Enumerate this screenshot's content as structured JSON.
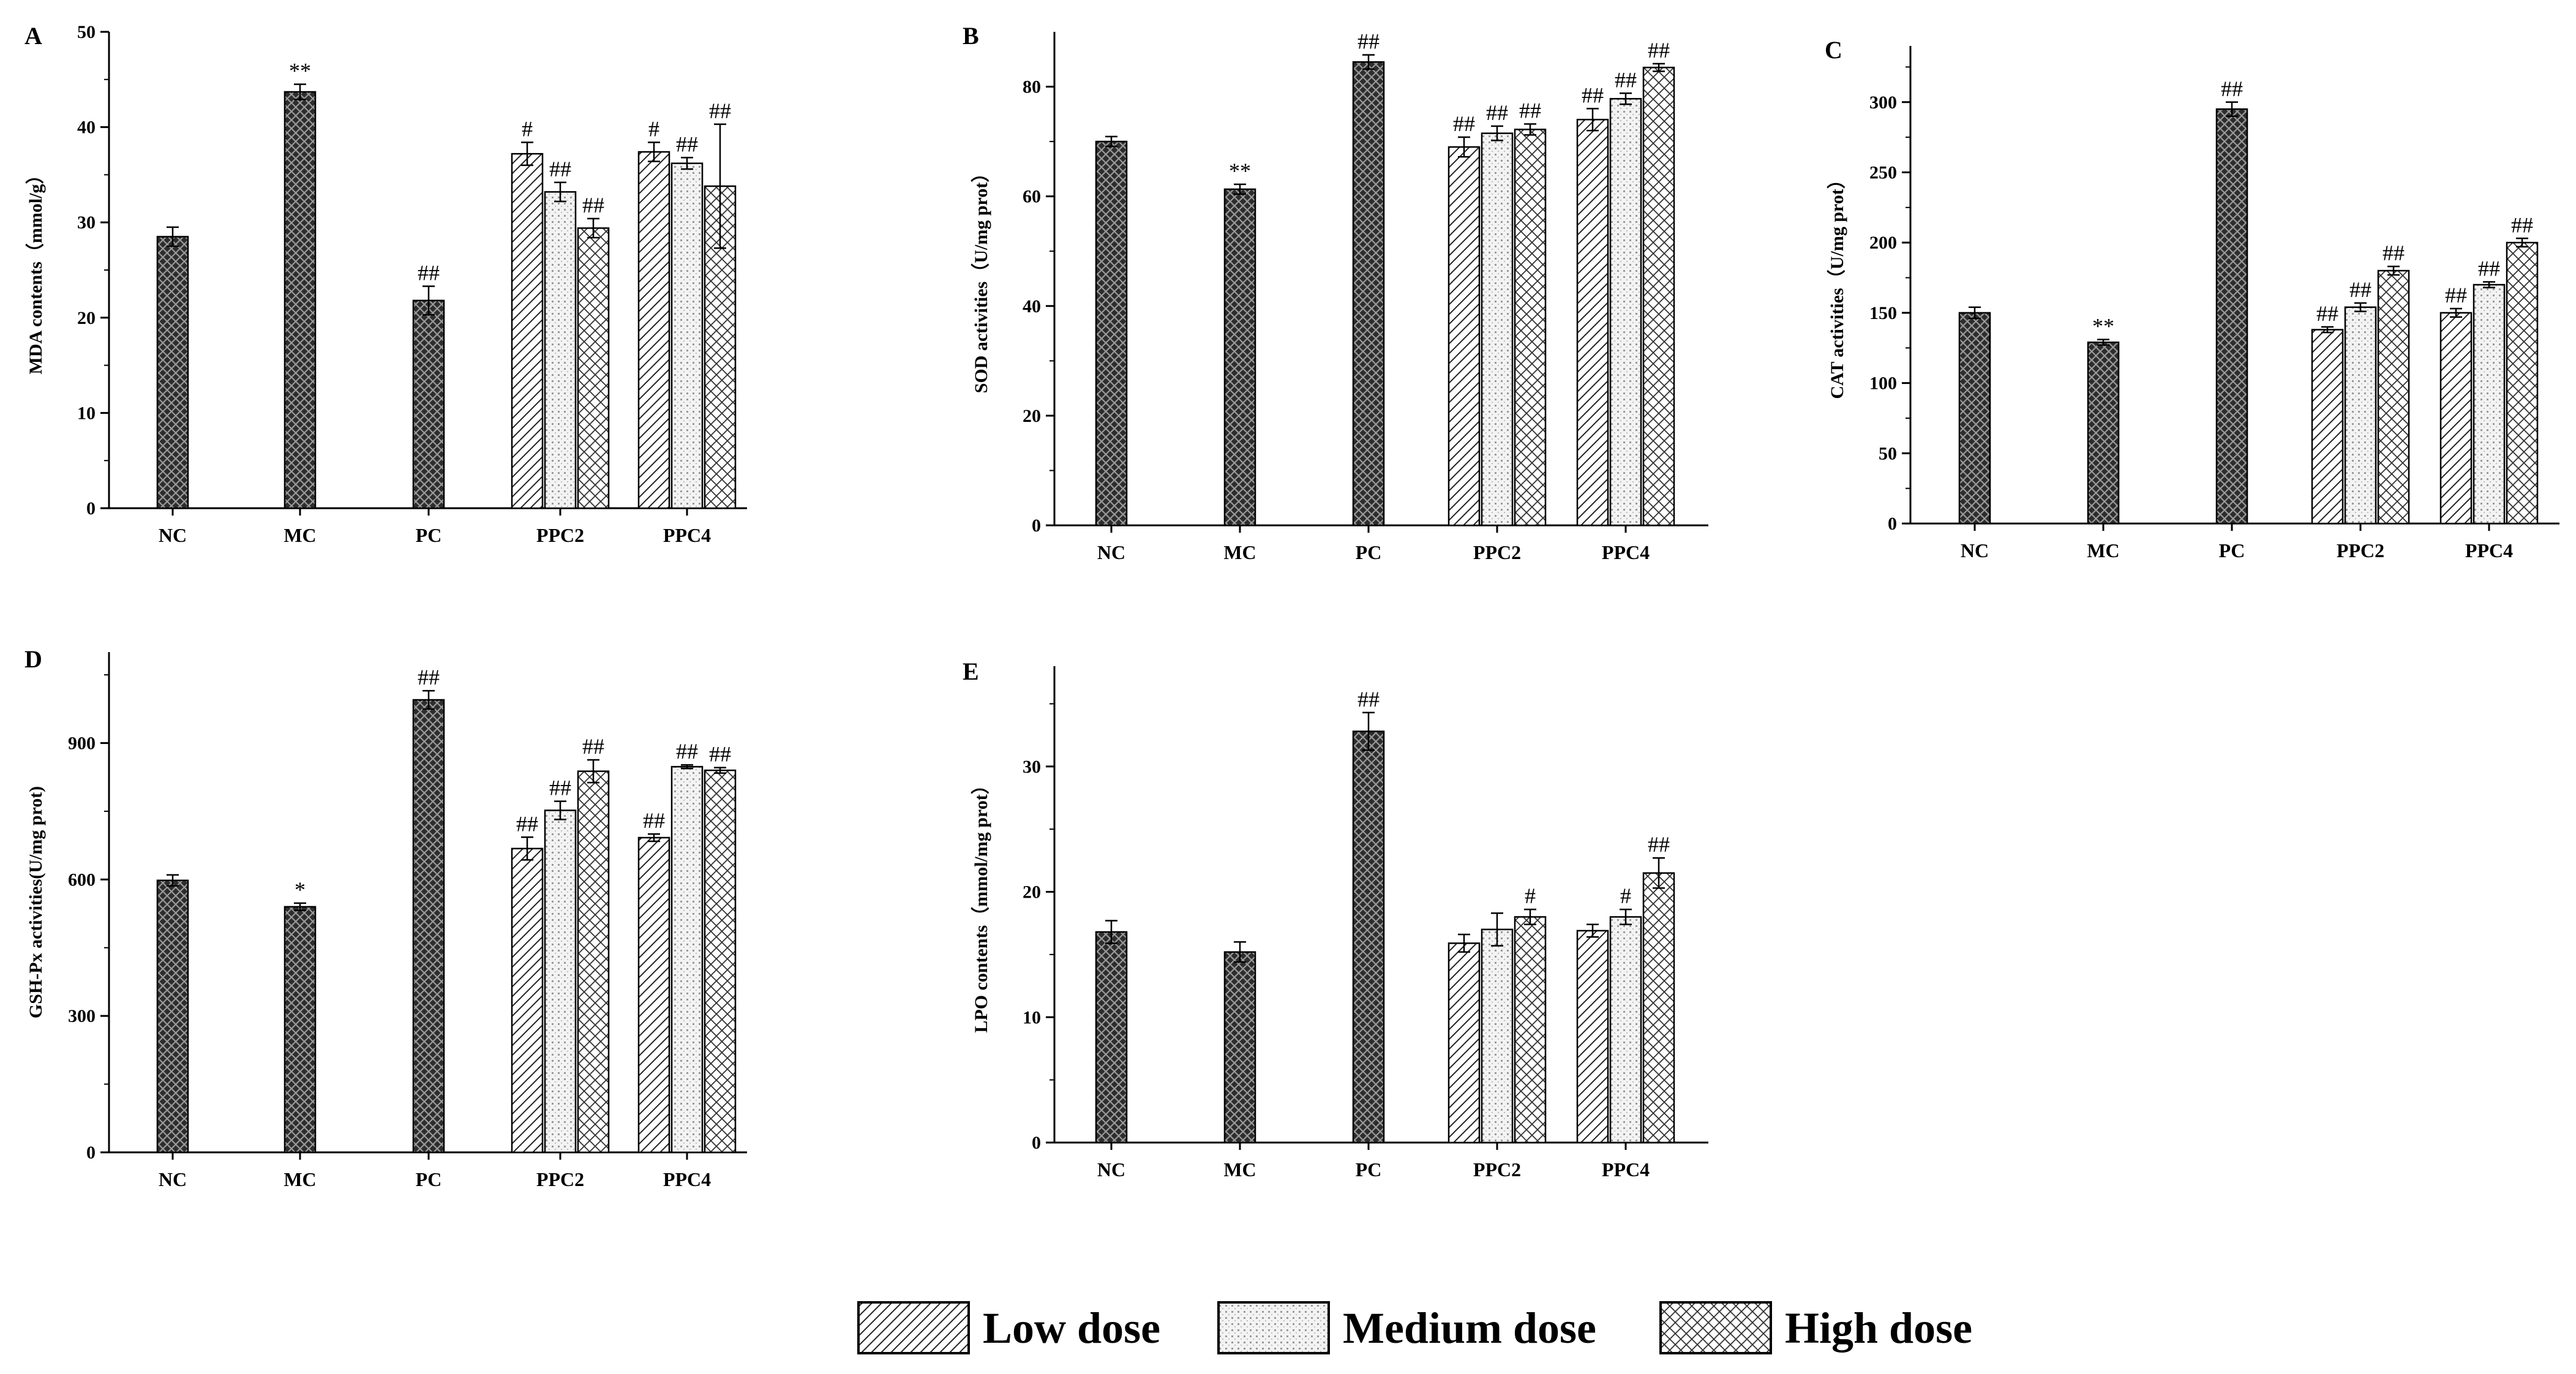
{
  "dose_legend": [
    {
      "key": "low",
      "label": "Low dose"
    },
    {
      "key": "medium",
      "label": "Medium dose"
    },
    {
      "key": "high",
      "label": "High dose"
    }
  ],
  "chart_data": [
    {
      "type": "bar",
      "panel": "A",
      "ylabel": "MDA contents（mmol/g）",
      "ylim": [
        0,
        50
      ],
      "yticks": [
        0,
        10,
        20,
        30,
        40,
        50
      ],
      "categories": [
        "NC",
        "MC",
        "PC",
        "PPC2",
        "PPC4"
      ],
      "bars": [
        {
          "category": "NC",
          "dose": "single",
          "value": 28.5,
          "error": 1.0,
          "sig": ""
        },
        {
          "category": "MC",
          "dose": "single",
          "value": 43.7,
          "error": 0.8,
          "sig": "**"
        },
        {
          "category": "PC",
          "dose": "single",
          "value": 21.8,
          "error": 1.5,
          "sig": "##"
        },
        {
          "category": "PPC2",
          "dose": "low",
          "value": 37.2,
          "error": 1.2,
          "sig": "#"
        },
        {
          "category": "PPC2",
          "dose": "medium",
          "value": 33.2,
          "error": 1.0,
          "sig": "##"
        },
        {
          "category": "PPC2",
          "dose": "high",
          "value": 29.4,
          "error": 1.0,
          "sig": "##"
        },
        {
          "category": "PPC4",
          "dose": "low",
          "value": 37.4,
          "error": 1.0,
          "sig": "#"
        },
        {
          "category": "PPC4",
          "dose": "medium",
          "value": 36.2,
          "error": 0.6,
          "sig": "##"
        },
        {
          "category": "PPC4",
          "dose": "high",
          "value": 33.8,
          "error": 6.5,
          "sig": "##"
        }
      ]
    },
    {
      "type": "bar",
      "panel": "B",
      "ylabel": "SOD activities（U/mg prot）",
      "ylim": [
        0,
        90
      ],
      "yticks": [
        0,
        20,
        40,
        60,
        80
      ],
      "categories": [
        "NC",
        "MC",
        "PC",
        "PPC2",
        "PPC4"
      ],
      "bars": [
        {
          "category": "NC",
          "dose": "single",
          "value": 70.0,
          "error": 0.9,
          "sig": ""
        },
        {
          "category": "MC",
          "dose": "single",
          "value": 61.3,
          "error": 0.9,
          "sig": "**"
        },
        {
          "category": "PC",
          "dose": "single",
          "value": 84.5,
          "error": 1.3,
          "sig": "##"
        },
        {
          "category": "PPC2",
          "dose": "low",
          "value": 69.0,
          "error": 1.8,
          "sig": "##"
        },
        {
          "category": "PPC2",
          "dose": "medium",
          "value": 71.5,
          "error": 1.3,
          "sig": "##"
        },
        {
          "category": "PPC2",
          "dose": "high",
          "value": 72.2,
          "error": 1.0,
          "sig": "##"
        },
        {
          "category": "PPC4",
          "dose": "low",
          "value": 74.0,
          "error": 2.0,
          "sig": "##"
        },
        {
          "category": "PPC4",
          "dose": "medium",
          "value": 77.8,
          "error": 1.0,
          "sig": "##"
        },
        {
          "category": "PPC4",
          "dose": "high",
          "value": 83.5,
          "error": 0.7,
          "sig": "##"
        }
      ]
    },
    {
      "type": "bar",
      "panel": "C",
      "ylabel": "CAT activities（U/mg prot）",
      "ylim": [
        0,
        340
      ],
      "yticks": [
        0,
        50,
        100,
        150,
        200,
        250,
        300
      ],
      "categories": [
        "NC",
        "MC",
        "PC",
        "PPC2",
        "PPC4"
      ],
      "bars": [
        {
          "category": "NC",
          "dose": "single",
          "value": 150.0,
          "error": 4,
          "sig": ""
        },
        {
          "category": "MC",
          "dose": "single",
          "value": 129.0,
          "error": 2,
          "sig": "**"
        },
        {
          "category": "PC",
          "dose": "single",
          "value": 295.0,
          "error": 5,
          "sig": "##"
        },
        {
          "category": "PPC2",
          "dose": "low",
          "value": 138.0,
          "error": 2,
          "sig": "##"
        },
        {
          "category": "PPC2",
          "dose": "medium",
          "value": 154.0,
          "error": 3,
          "sig": "##"
        },
        {
          "category": "PPC2",
          "dose": "high",
          "value": 180.0,
          "error": 3,
          "sig": "##"
        },
        {
          "category": "PPC4",
          "dose": "low",
          "value": 150.0,
          "error": 3,
          "sig": "##"
        },
        {
          "category": "PPC4",
          "dose": "medium",
          "value": 170.0,
          "error": 2,
          "sig": "##"
        },
        {
          "category": "PPC4",
          "dose": "high",
          "value": 200.0,
          "error": 3,
          "sig": "##"
        }
      ]
    },
    {
      "type": "bar",
      "panel": "D",
      "ylabel": "GSH-Px activities(U/mg prot)",
      "ylim": [
        0,
        1100
      ],
      "yticks": [
        0,
        300,
        600,
        900
      ],
      "categories": [
        "NC",
        "MC",
        "PC",
        "PPC2",
        "PPC4"
      ],
      "bars": [
        {
          "category": "NC",
          "dose": "single",
          "value": 598,
          "error": 12,
          "sig": ""
        },
        {
          "category": "MC",
          "dose": "single",
          "value": 540,
          "error": 8,
          "sig": "*"
        },
        {
          "category": "PC",
          "dose": "single",
          "value": 995,
          "error": 20,
          "sig": "##"
        },
        {
          "category": "PPC2",
          "dose": "low",
          "value": 668,
          "error": 25,
          "sig": "##"
        },
        {
          "category": "PPC2",
          "dose": "medium",
          "value": 752,
          "error": 20,
          "sig": "##"
        },
        {
          "category": "PPC2",
          "dose": "high",
          "value": 838,
          "error": 25,
          "sig": "##"
        },
        {
          "category": "PPC4",
          "dose": "low",
          "value": 692,
          "error": 8,
          "sig": "##"
        },
        {
          "category": "PPC4",
          "dose": "medium",
          "value": 848,
          "error": 4,
          "sig": "##"
        },
        {
          "category": "PPC4",
          "dose": "high",
          "value": 840,
          "error": 6,
          "sig": "##"
        }
      ]
    },
    {
      "type": "bar",
      "panel": "E",
      "ylabel": "LPO contents（mmol/mg prot）",
      "ylim": [
        0,
        38
      ],
      "yticks": [
        0,
        10,
        20,
        30
      ],
      "categories": [
        "NC",
        "MC",
        "PC",
        "PPC2",
        "PPC4"
      ],
      "bars": [
        {
          "category": "NC",
          "dose": "single",
          "value": 16.8,
          "error": 0.9,
          "sig": ""
        },
        {
          "category": "MC",
          "dose": "single",
          "value": 15.2,
          "error": 0.8,
          "sig": ""
        },
        {
          "category": "PC",
          "dose": "single",
          "value": 32.8,
          "error": 1.5,
          "sig": "##"
        },
        {
          "category": "PPC2",
          "dose": "low",
          "value": 15.9,
          "error": 0.7,
          "sig": ""
        },
        {
          "category": "PPC2",
          "dose": "medium",
          "value": 17.0,
          "error": 1.3,
          "sig": ""
        },
        {
          "category": "PPC2",
          "dose": "high",
          "value": 18.0,
          "error": 0.6,
          "sig": "#"
        },
        {
          "category": "PPC4",
          "dose": "low",
          "value": 16.9,
          "error": 0.5,
          "sig": ""
        },
        {
          "category": "PPC4",
          "dose": "medium",
          "value": 18.0,
          "error": 0.6,
          "sig": "#"
        },
        {
          "category": "PPC4",
          "dose": "high",
          "value": 21.5,
          "error": 1.2,
          "sig": "##"
        }
      ]
    }
  ]
}
